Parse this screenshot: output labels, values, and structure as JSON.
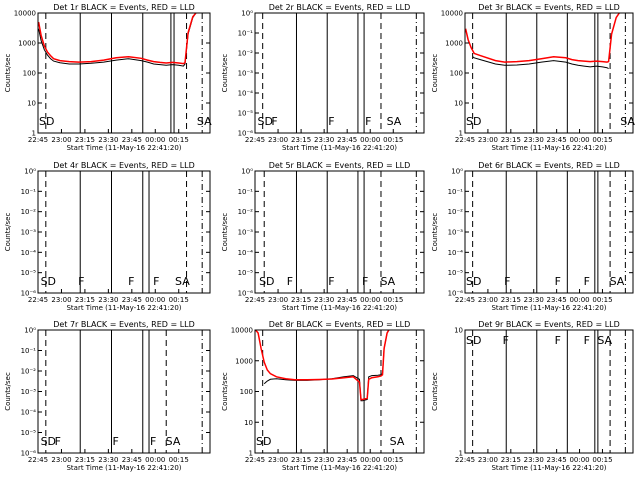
{
  "colors": {
    "events": "#000000",
    "lld": "#ff0000",
    "background": "#ffffff",
    "axes": "#000000"
  },
  "chart_data": [
    {
      "id": "det1r",
      "type": "line",
      "title": "Det 1r BLACK = Events, RED = LLD",
      "xlabel": "Start Time (11-May-16 22:41:20)",
      "ylabel": "Counts/sec",
      "xlim": [
        45,
        100
      ],
      "yscale": "log",
      "yticks": [
        {
          "v": 1,
          "label": "1"
        },
        {
          "v": 10,
          "label": "10"
        },
        {
          "v": 100,
          "label": "100"
        },
        {
          "v": 1000,
          "label": "1000"
        },
        {
          "v": 10000,
          "label": "10000"
        }
      ],
      "xticks": [
        "22:45",
        "23:00",
        "23:15",
        "23:30",
        "23:45",
        "00:00",
        "00:15"
      ],
      "markers": [
        {
          "t": 45.0,
          "label": "SD"
        },
        {
          "t": 95.5,
          "label": "SA"
        }
      ],
      "dashed_lines": [
        47.5,
        92.5
      ],
      "dashdot_lines": [
        97.5
      ],
      "solid_lines": [
        58.5,
        68.5,
        78.5,
        87.5,
        88.5
      ],
      "series": [
        {
          "name": "Events",
          "color": "#000000",
          "x": [
            45.2,
            46,
            47,
            48,
            49,
            50,
            52,
            55,
            58,
            62,
            66,
            70,
            74,
            78,
            80,
            82,
            84,
            86,
            88,
            90,
            91.5,
            92,
            93,
            94.5,
            95.5,
            96
          ],
          "y": [
            3000,
            1200,
            600,
            400,
            300,
            250,
            220,
            200,
            200,
            210,
            230,
            270,
            300,
            260,
            230,
            200,
            190,
            180,
            190,
            180,
            170,
            200,
            2000,
            7000,
            10000,
            12000
          ]
        },
        {
          "name": "LLD",
          "color": "#ff0000",
          "x": [
            45.2,
            46,
            47,
            48,
            49,
            50,
            52,
            55,
            58,
            62,
            66,
            70,
            74,
            78,
            80,
            82,
            84,
            86,
            88,
            90,
            91.5,
            92,
            93,
            94.5,
            95.5,
            96
          ],
          "y": [
            5000,
            1800,
            800,
            500,
            380,
            300,
            260,
            240,
            230,
            240,
            270,
            320,
            350,
            310,
            270,
            240,
            225,
            215,
            225,
            215,
            205,
            220,
            2200,
            7500,
            10000,
            12000
          ]
        }
      ]
    },
    {
      "id": "det2r",
      "type": "line",
      "title": "Det 2r BLACK = Events, RED = LLD",
      "xlabel": "Start Time (11-May-16 22:41:20)",
      "ylabel": "Counts/sec",
      "xlim": [
        45,
        100
      ],
      "yscale": "log",
      "yticks": [
        {
          "v": 1,
          "label": "10⁰"
        },
        {
          "v": 0.1,
          "label": "10⁻¹"
        },
        {
          "v": 0.01,
          "label": "10⁻²"
        },
        {
          "v": 0.001,
          "label": "10⁻³"
        },
        {
          "v": 0.0001,
          "label": "10⁻⁴"
        },
        {
          "v": 1e-05,
          "label": "10⁻⁵"
        },
        {
          "v": 1e-06,
          "label": "10⁻⁶"
        }
      ],
      "xticks": [
        "22:45",
        "23:00",
        "23:15",
        "23:30",
        "23:45",
        "00:00",
        "00:15"
      ],
      "markers": [
        {
          "t": 45.5,
          "label": "SD"
        },
        {
          "t": 50.0,
          "label": "F"
        },
        {
          "t": 68.5,
          "label": "F"
        },
        {
          "t": 80.5,
          "label": "F"
        },
        {
          "t": 87.5,
          "label": "SA"
        }
      ],
      "dashed_lines": [
        47.5,
        86.0
      ],
      "dashdot_lines": [
        97.5
      ],
      "solid_lines": [
        58.5,
        68.5,
        78.5,
        80.5
      ],
      "series": []
    },
    {
      "id": "det3r",
      "type": "line",
      "title": "Det 3r BLACK = Events, RED = LLD",
      "xlabel": "Start Time (11-May-16 22:41:20)",
      "ylabel": "Counts/sec",
      "xlim": [
        45,
        100
      ],
      "yscale": "log",
      "yticks": [
        {
          "v": 1,
          "label": "1"
        },
        {
          "v": 10,
          "label": "10"
        },
        {
          "v": 100,
          "label": "100"
        },
        {
          "v": 1000,
          "label": "1000"
        },
        {
          "v": 10000,
          "label": "10000"
        }
      ],
      "xticks": [
        "22:45",
        "23:00",
        "23:15",
        "23:30",
        "23:45",
        "00:00",
        "00:15"
      ],
      "markers": [
        {
          "t": 45.0,
          "label": "SD"
        },
        {
          "t": 95.5,
          "label": "SA"
        }
      ],
      "dashed_lines": [
        47.5,
        92.5
      ],
      "dashdot_lines": [
        97.5
      ],
      "solid_lines": [
        58.5,
        68.5,
        78.5,
        87.5,
        88.5
      ],
      "series": [
        {
          "name": "Events",
          "color": "#000000",
          "x": [
            47.5,
            48,
            50,
            55,
            58,
            62,
            66,
            70,
            74,
            78,
            80,
            82,
            84,
            86,
            88,
            90,
            91.5,
            92
          ],
          "y": [
            350,
            320,
            280,
            200,
            180,
            185,
            200,
            230,
            260,
            230,
            200,
            180,
            170,
            160,
            170,
            160,
            150,
            140
          ]
        },
        {
          "name": "LLD",
          "color": "#ff0000",
          "x": [
            45.2,
            46,
            47,
            48,
            50,
            55,
            58,
            62,
            66,
            70,
            74,
            78,
            80,
            82,
            84,
            86,
            88,
            90,
            91.5,
            92,
            93,
            94.5,
            95.5,
            96
          ],
          "y": [
            3000,
            1300,
            700,
            450,
            380,
            260,
            230,
            240,
            260,
            300,
            350,
            320,
            280,
            260,
            250,
            240,
            250,
            240,
            230,
            240,
            2000,
            7000,
            10000,
            12000
          ]
        }
      ]
    },
    {
      "id": "det4r",
      "type": "line",
      "title": "Det 4r BLACK = Events, RED = LLD",
      "xlabel": "Start Time (11-May-16 22:41:20)",
      "ylabel": "Counts/sec",
      "xlim": [
        45,
        100
      ],
      "yscale": "log",
      "yticks": [
        {
          "v": 1,
          "label": "10⁰"
        },
        {
          "v": 0.1,
          "label": "10⁻¹"
        },
        {
          "v": 0.01,
          "label": "10⁻²"
        },
        {
          "v": 0.001,
          "label": "10⁻³"
        },
        {
          "v": 0.0001,
          "label": "10⁻⁴"
        },
        {
          "v": 1e-05,
          "label": "10⁻⁵"
        },
        {
          "v": 1e-06,
          "label": "10⁻⁶"
        }
      ],
      "xticks": [
        "22:45",
        "23:00",
        "23:15",
        "23:30",
        "23:45",
        "00:00",
        "00:15"
      ],
      "markers": [
        {
          "t": 45.5,
          "label": "SD"
        },
        {
          "t": 57.5,
          "label": "F"
        },
        {
          "t": 73.5,
          "label": "F"
        },
        {
          "t": 81.5,
          "label": "F"
        },
        {
          "t": 88.5,
          "label": "SA"
        }
      ],
      "dashed_lines": [
        47.5,
        92.5
      ],
      "dashdot_lines": [
        97.5
      ],
      "solid_lines": [
        58.5,
        68.5,
        78.5,
        80.5
      ],
      "series": []
    },
    {
      "id": "det5r",
      "type": "line",
      "title": "Det 5r BLACK = Events, RED = LLD",
      "xlabel": "Start Time (11-May-16 22:41:20)",
      "ylabel": "Counts/sec",
      "xlim": [
        45,
        100
      ],
      "yscale": "log",
      "yticks": [
        {
          "v": 1,
          "label": "10⁰"
        },
        {
          "v": 0.1,
          "label": "10⁻¹"
        },
        {
          "v": 0.01,
          "label": "10⁻²"
        },
        {
          "v": 0.001,
          "label": "10⁻³"
        },
        {
          "v": 0.0001,
          "label": "10⁻⁴"
        },
        {
          "v": 1e-05,
          "label": "10⁻⁵"
        },
        {
          "v": 1e-06,
          "label": "10⁻⁶"
        }
      ],
      "xticks": [
        "22:45",
        "23:00",
        "23:15",
        "23:30",
        "23:45",
        "00:00",
        "00:15"
      ],
      "markers": [
        {
          "t": 46.0,
          "label": "SD"
        },
        {
          "t": 55.0,
          "label": "F"
        },
        {
          "t": 68.5,
          "label": "F"
        },
        {
          "t": 79.5,
          "label": "F"
        },
        {
          "t": 85.5,
          "label": "SA"
        }
      ],
      "dashed_lines": [
        48.0,
        86.0
      ],
      "dashdot_lines": [
        97.5
      ],
      "solid_lines": [
        58.5,
        68.5,
        78.5,
        80.5
      ],
      "series": []
    },
    {
      "id": "det6r",
      "type": "line",
      "title": "Det 6r BLACK = Events, RED = LLD",
      "xlabel": "Start Time (11-May-16 22:41:20)",
      "ylabel": "Counts/sec",
      "xlim": [
        45,
        100
      ],
      "yscale": "log",
      "yticks": [
        {
          "v": 1,
          "label": "10⁰"
        },
        {
          "v": 0.1,
          "label": "10⁻¹"
        },
        {
          "v": 0.01,
          "label": "10⁻²"
        },
        {
          "v": 0.001,
          "label": "10⁻³"
        },
        {
          "v": 0.0001,
          "label": "10⁻⁴"
        },
        {
          "v": 1e-05,
          "label": "10⁻⁵"
        },
        {
          "v": 1e-06,
          "label": "10⁻⁶"
        }
      ],
      "xticks": [
        "22:45",
        "23:00",
        "23:15",
        "23:30",
        "23:45",
        "00:00",
        "00:15"
      ],
      "markers": [
        {
          "t": 45.0,
          "label": "SD"
        },
        {
          "t": 57.5,
          "label": "F"
        },
        {
          "t": 74.0,
          "label": "F"
        },
        {
          "t": 83.5,
          "label": "F"
        },
        {
          "t": 92.0,
          "label": "SA"
        }
      ],
      "dashed_lines": [
        47.5,
        92.5
      ],
      "dashdot_lines": [
        97.5
      ],
      "solid_lines": [
        58.5,
        68.5,
        78.5,
        87.5,
        88.5
      ],
      "series": []
    },
    {
      "id": "det7r",
      "type": "line",
      "title": "Det 7r BLACK = Events, RED = LLD",
      "xlabel": "Start Time (11-May-16 22:41:20)",
      "ylabel": "Counts/sec",
      "xlim": [
        45,
        100
      ],
      "yscale": "log",
      "yticks": [
        {
          "v": 1,
          "label": "10⁰"
        },
        {
          "v": 0.1,
          "label": "10⁻¹"
        },
        {
          "v": 0.01,
          "label": "10⁻²"
        },
        {
          "v": 0.001,
          "label": "10⁻³"
        },
        {
          "v": 0.0001,
          "label": "10⁻⁴"
        },
        {
          "v": 1e-05,
          "label": "10⁻⁵"
        },
        {
          "v": 1e-06,
          "label": "10⁻⁶"
        }
      ],
      "xticks": [
        "22:45",
        "23:00",
        "23:15",
        "23:30",
        "23:45",
        "00:00",
        "00:15"
      ],
      "markers": [
        {
          "t": 45.5,
          "label": "SD"
        },
        {
          "t": 50.0,
          "label": "F"
        },
        {
          "t": 68.5,
          "label": "F"
        },
        {
          "t": 80.5,
          "label": "F"
        },
        {
          "t": 85.5,
          "label": "SA"
        }
      ],
      "dashed_lines": [
        47.5,
        86.0
      ],
      "dashdot_lines": [
        97.5
      ],
      "solid_lines": [
        58.5,
        68.5,
        78.5,
        80.5
      ],
      "series": []
    },
    {
      "id": "det8r",
      "type": "line",
      "title": "Det 8r BLACK = Events, RED = LLD",
      "xlabel": "Start Time (11-May-16 22:41:20)",
      "ylabel": "Counts/sec",
      "xlim": [
        45,
        100
      ],
      "yscale": "log",
      "yticks": [
        {
          "v": 1,
          "label": "1"
        },
        {
          "v": 10,
          "label": "10"
        },
        {
          "v": 100,
          "label": "100"
        },
        {
          "v": 1000,
          "label": "1000"
        },
        {
          "v": 10000,
          "label": "10000"
        }
      ],
      "xticks": [
        "22:45",
        "23:00",
        "23:15",
        "23:30",
        "23:45",
        "00:00",
        "00:15"
      ],
      "markers": [
        {
          "t": 45.0,
          "label": "SD"
        },
        {
          "t": 88.5,
          "label": "SA"
        }
      ],
      "dashed_lines": [
        47.5,
        86.0
      ],
      "dashdot_lines": [
        97.5
      ],
      "solid_lines": [
        58.5,
        68.5,
        78.5,
        80.5
      ],
      "series": [
        {
          "name": "Events",
          "color": "#000000",
          "x": [
            48,
            49,
            50,
            52,
            55,
            58,
            62,
            66,
            70,
            74,
            77,
            79,
            79.5,
            80,
            81.5,
            82,
            83,
            85,
            86,
            86.5,
            87,
            88,
            89
          ],
          "y": [
            180,
            220,
            250,
            260,
            240,
            230,
            230,
            240,
            260,
            300,
            330,
            250,
            50,
            50,
            55,
            300,
            330,
            340,
            350,
            380,
            2500,
            8000,
            12000
          ]
        },
        {
          "name": "LLD",
          "color": "#ff0000",
          "x": [
            45.2,
            46,
            47,
            48,
            49,
            50,
            52,
            55,
            58,
            62,
            66,
            70,
            74,
            77,
            79,
            79.5,
            80,
            81.5,
            82,
            83,
            85,
            86,
            86.5,
            87,
            88,
            89
          ],
          "y": [
            10000,
            8000,
            2500,
            900,
            500,
            380,
            300,
            260,
            240,
            240,
            245,
            255,
            280,
            300,
            200,
            55,
            55,
            60,
            250,
            280,
            300,
            320,
            350,
            2500,
            8000,
            12000
          ]
        }
      ]
    },
    {
      "id": "det9r",
      "type": "line",
      "title": "Det 9r BLACK = Events, RED = LLD",
      "xlabel": "Start Time (11-May-16 22:41:20)",
      "ylabel": "Counts/sec",
      "xlim": [
        45,
        100
      ],
      "yscale": "log",
      "yticks": [
        {
          "v": 1,
          "label": "1"
        },
        {
          "v": 10,
          "label": "10"
        }
      ],
      "xticks": [
        "22:45",
        "23:00",
        "23:15",
        "23:30",
        "23:45",
        "00:00",
        "00:15"
      ],
      "markers": [
        {
          "t": 45.0,
          "label": "SD"
        },
        {
          "t": 57.0,
          "label": "F"
        },
        {
          "t": 74.0,
          "label": "F"
        },
        {
          "t": 83.5,
          "label": "F"
        },
        {
          "t": 88.0,
          "label": "SA"
        }
      ],
      "dashed_lines": [
        47.5,
        92.5
      ],
      "dashdot_lines": [
        97.5
      ],
      "solid_lines": [
        58.5,
        68.5,
        78.5,
        87.5,
        88.5
      ],
      "series": []
    }
  ]
}
